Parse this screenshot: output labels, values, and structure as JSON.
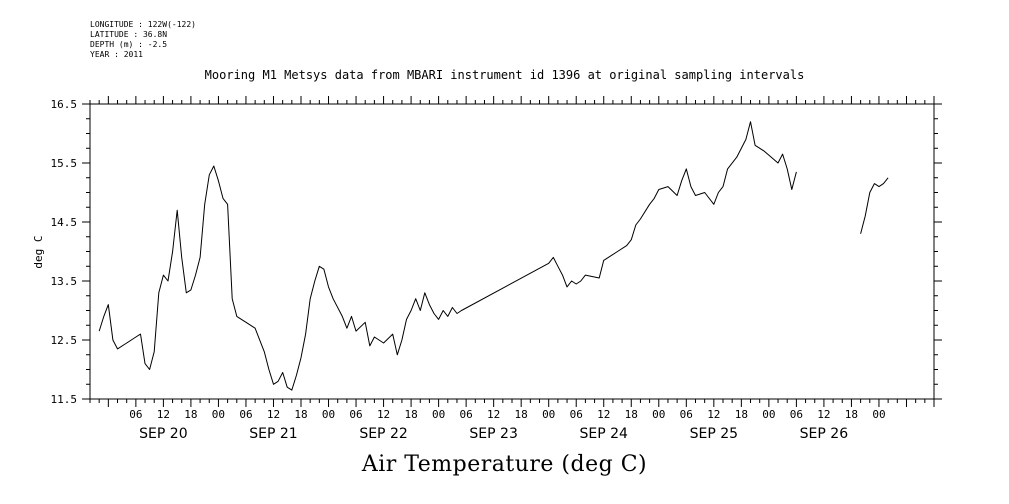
{
  "meta": {
    "longitude": "LONGITUDE : 122W(-122)",
    "latitude": "LATITUDE : 36.8N",
    "depth": "DEPTH (m) : -2.5",
    "year": "YEAR : 2011"
  },
  "chart_data": {
    "type": "line",
    "title": "Mooring M1 Metsys data from MBARI instrument id 1396 at original sampling intervals",
    "xlabel": "Air Temperature (deg C)",
    "ylabel": "deg C",
    "ylim": [
      11.5,
      16.5
    ],
    "yticks": [
      "11.5",
      "12.5",
      "13.5",
      "14.5",
      "15.5",
      "16.5"
    ],
    "xlim_hours_from_sep20_00": [
      -4,
      180
    ],
    "hour_ticks": [
      "06",
      "12",
      "18",
      "00",
      "06",
      "12",
      "18",
      "00",
      "06",
      "12",
      "18",
      "00",
      "06",
      "12",
      "18",
      "00",
      "06",
      "12",
      "18",
      "00",
      "06",
      "12",
      "18",
      "00",
      "06",
      "12",
      "18",
      "00"
    ],
    "day_labels": [
      "SEP 20",
      "SEP 21",
      "SEP 22",
      "SEP 23",
      "SEP 24",
      "SEP 25",
      "SEP 26"
    ],
    "series": [
      {
        "segments": [
          [
            [
              "2011-09-19T22:00",
              12.65
            ],
            [
              "2011-09-19T23:00",
              12.9
            ],
            [
              "2011-09-20T00:00",
              13.1
            ],
            [
              "2011-09-20T01:00",
              12.5
            ],
            [
              "2011-09-20T02:00",
              12.35
            ],
            [
              "2011-09-20T04:00",
              12.45
            ],
            [
              "2011-09-20T06:00",
              12.55
            ],
            [
              "2011-09-20T07:00",
              12.6
            ],
            [
              "2011-09-20T08:00",
              12.1
            ],
            [
              "2011-09-20T09:00",
              12.0
            ],
            [
              "2011-09-20T10:00",
              12.3
            ],
            [
              "2011-09-20T11:00",
              13.3
            ],
            [
              "2011-09-20T12:00",
              13.6
            ],
            [
              "2011-09-20T13:00",
              13.5
            ],
            [
              "2011-09-20T14:00",
              14.0
            ],
            [
              "2011-09-20T15:00",
              14.7
            ],
            [
              "2011-09-20T16:00",
              13.9
            ],
            [
              "2011-09-20T17:00",
              13.3
            ],
            [
              "2011-09-20T18:00",
              13.35
            ],
            [
              "2011-09-20T19:00",
              13.6
            ],
            [
              "2011-09-20T20:00",
              13.9
            ],
            [
              "2011-09-20T21:00",
              14.8
            ],
            [
              "2011-09-20T22:00",
              15.3
            ],
            [
              "2011-09-20T23:00",
              15.45
            ],
            [
              "2011-09-21T00:00",
              15.2
            ],
            [
              "2011-09-21T01:00",
              14.9
            ],
            [
              "2011-09-21T02:00",
              14.8
            ],
            [
              "2011-09-21T03:00",
              13.2
            ],
            [
              "2011-09-21T04:00",
              12.9
            ],
            [
              "2011-09-21T06:00",
              12.8
            ],
            [
              "2011-09-21T08:00",
              12.7
            ],
            [
              "2011-09-21T10:00",
              12.3
            ],
            [
              "2011-09-21T11:00",
              12.0
            ],
            [
              "2011-09-21T12:00",
              11.75
            ],
            [
              "2011-09-21T13:00",
              11.8
            ],
            [
              "2011-09-21T14:00",
              11.95
            ],
            [
              "2011-09-21T15:00",
              11.7
            ],
            [
              "2011-09-21T16:00",
              11.65
            ],
            [
              "2011-09-21T17:00",
              11.9
            ],
            [
              "2011-09-21T18:00",
              12.2
            ],
            [
              "2011-09-21T19:00",
              12.6
            ],
            [
              "2011-09-21T20:00",
              13.2
            ],
            [
              "2011-09-21T21:00",
              13.5
            ],
            [
              "2011-09-21T22:00",
              13.75
            ],
            [
              "2011-09-21T23:00",
              13.7
            ],
            [
              "2011-09-22T00:00",
              13.4
            ],
            [
              "2011-09-22T01:00",
              13.2
            ],
            [
              "2011-09-22T03:00",
              12.9
            ],
            [
              "2011-09-22T04:00",
              12.7
            ],
            [
              "2011-09-22T05:00",
              12.9
            ],
            [
              "2011-09-22T06:00",
              12.65
            ],
            [
              "2011-09-22T08:00",
              12.8
            ],
            [
              "2011-09-22T09:00",
              12.4
            ],
            [
              "2011-09-22T10:00",
              12.55
            ],
            [
              "2011-09-22T12:00",
              12.45
            ],
            [
              "2011-09-22T14:00",
              12.6
            ],
            [
              "2011-09-22T15:00",
              12.25
            ],
            [
              "2011-09-22T16:00",
              12.5
            ],
            [
              "2011-09-22T17:00",
              12.85
            ],
            [
              "2011-09-22T18:00",
              13.0
            ],
            [
              "2011-09-22T19:00",
              13.2
            ],
            [
              "2011-09-22T20:00",
              13.0
            ],
            [
              "2011-09-22T21:00",
              13.3
            ],
            [
              "2011-09-22T22:00",
              13.1
            ],
            [
              "2011-09-22T23:00",
              12.95
            ],
            [
              "2011-09-23T00:00",
              12.85
            ],
            [
              "2011-09-23T01:00",
              13.0
            ],
            [
              "2011-09-23T02:00",
              12.9
            ],
            [
              "2011-09-23T03:00",
              13.05
            ],
            [
              "2011-09-23T04:00",
              12.95
            ],
            [
              "2011-09-23T05:00",
              13.0
            ],
            [
              "2011-09-24T00:00",
              13.8
            ],
            [
              "2011-09-24T01:00",
              13.9
            ],
            [
              "2011-09-24T02:00",
              13.75
            ],
            [
              "2011-09-24T03:00",
              13.6
            ],
            [
              "2011-09-24T04:00",
              13.4
            ],
            [
              "2011-09-24T05:00",
              13.5
            ],
            [
              "2011-09-24T06:00",
              13.45
            ],
            [
              "2011-09-24T07:00",
              13.5
            ],
            [
              "2011-09-24T08:00",
              13.6
            ],
            [
              "2011-09-24T11:00",
              13.55
            ],
            [
              "2011-09-24T12:00",
              13.85
            ],
            [
              "2011-09-24T15:00",
              14.0
            ],
            [
              "2011-09-24T17:00",
              14.1
            ],
            [
              "2011-09-24T18:00",
              14.2
            ],
            [
              "2011-09-24T19:00",
              14.45
            ],
            [
              "2011-09-24T20:00",
              14.55
            ],
            [
              "2011-09-24T22:00",
              14.8
            ],
            [
              "2011-09-24T23:00",
              14.9
            ],
            [
              "2011-09-25T00:00",
              15.05
            ],
            [
              "2011-09-25T02:00",
              15.1
            ],
            [
              "2011-09-25T04:00",
              14.95
            ],
            [
              "2011-09-25T05:00",
              15.2
            ],
            [
              "2011-09-25T06:00",
              15.4
            ],
            [
              "2011-09-25T07:00",
              15.1
            ],
            [
              "2011-09-25T08:00",
              14.95
            ],
            [
              "2011-09-25T10:00",
              15.0
            ],
            [
              "2011-09-25T12:00",
              14.8
            ],
            [
              "2011-09-25T13:00",
              15.0
            ],
            [
              "2011-09-25T14:00",
              15.1
            ],
            [
              "2011-09-25T15:00",
              15.4
            ],
            [
              "2011-09-25T17:00",
              15.6
            ],
            [
              "2011-09-25T19:00",
              15.9
            ],
            [
              "2011-09-25T20:00",
              16.2
            ],
            [
              "2011-09-25T21:00",
              15.8
            ],
            [
              "2011-09-25T23:00",
              15.7
            ],
            [
              "2011-09-26T02:00",
              15.5
            ],
            [
              "2011-09-26T03:00",
              15.65
            ],
            [
              "2011-09-26T04:00",
              15.4
            ],
            [
              "2011-09-26T05:00",
              15.05
            ],
            [
              "2011-09-26T06:00",
              15.35
            ]
          ],
          [
            [
              "2011-09-26T20:00",
              14.3
            ],
            [
              "2011-09-26T21:00",
              14.6
            ],
            [
              "2011-09-26T22:00",
              15.0
            ],
            [
              "2011-09-26T23:00",
              15.15
            ],
            [
              "2011-09-27T00:00",
              15.1
            ],
            [
              "2011-09-27T01:00",
              15.15
            ],
            [
              "2011-09-27T02:00",
              15.25
            ]
          ]
        ]
      }
    ]
  }
}
